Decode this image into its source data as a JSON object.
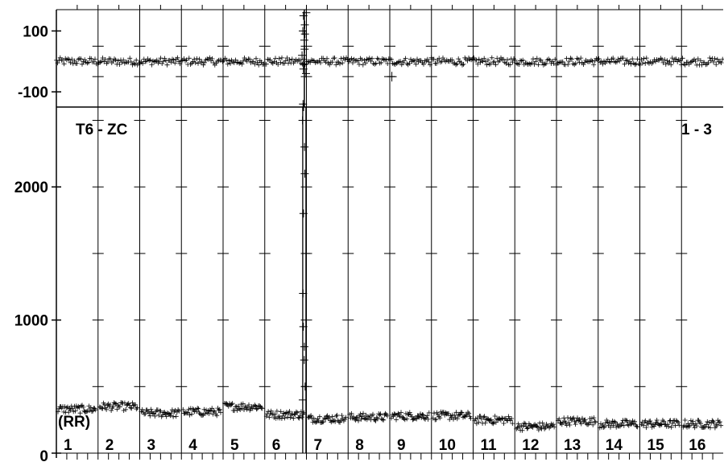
{
  "chart_data": [
    {
      "type": "scatter",
      "panel": "top",
      "ylim": [
        -150,
        170
      ],
      "yticks": [
        {
          "value": 100,
          "label": "100"
        },
        {
          "value": -100,
          "label": "-100"
        }
      ],
      "marker": "plus",
      "baseline_value": 0,
      "noise_amplitude": 12,
      "spike": {
        "channel": 6,
        "values": [
          160,
          150,
          120,
          100,
          90,
          70,
          40,
          20,
          -10,
          -25,
          -40,
          -140
        ]
      },
      "outliers": [
        {
          "channel": 9,
          "value": -50
        }
      ]
    },
    {
      "type": "scatter",
      "panel": "bottom",
      "title_left": "T6 - ZC",
      "title_right": "1 - 3",
      "annotation": "(RR)",
      "ylim": [
        0,
        2600
      ],
      "yticks": [
        {
          "value": 2000,
          "label": "2000"
        },
        {
          "value": 1000,
          "label": "1000"
        },
        {
          "value": 0,
          "label": "0"
        }
      ],
      "marker": "plus",
      "channels": [
        "1",
        "2",
        "3",
        "4",
        "5",
        "6",
        "7",
        "8",
        "9",
        "10",
        "11",
        "12",
        "13",
        "14",
        "15",
        "16"
      ],
      "channel_levels": [
        330,
        350,
        300,
        310,
        350,
        290,
        260,
        270,
        280,
        280,
        250,
        200,
        240,
        220,
        220,
        220
      ],
      "noise_amplitude": 30,
      "spike": {
        "channel": 6,
        "values": [
          2600,
          2500,
          2300,
          2100,
          1800,
          1500,
          1200,
          950,
          800,
          700,
          500,
          400
        ]
      }
    }
  ]
}
